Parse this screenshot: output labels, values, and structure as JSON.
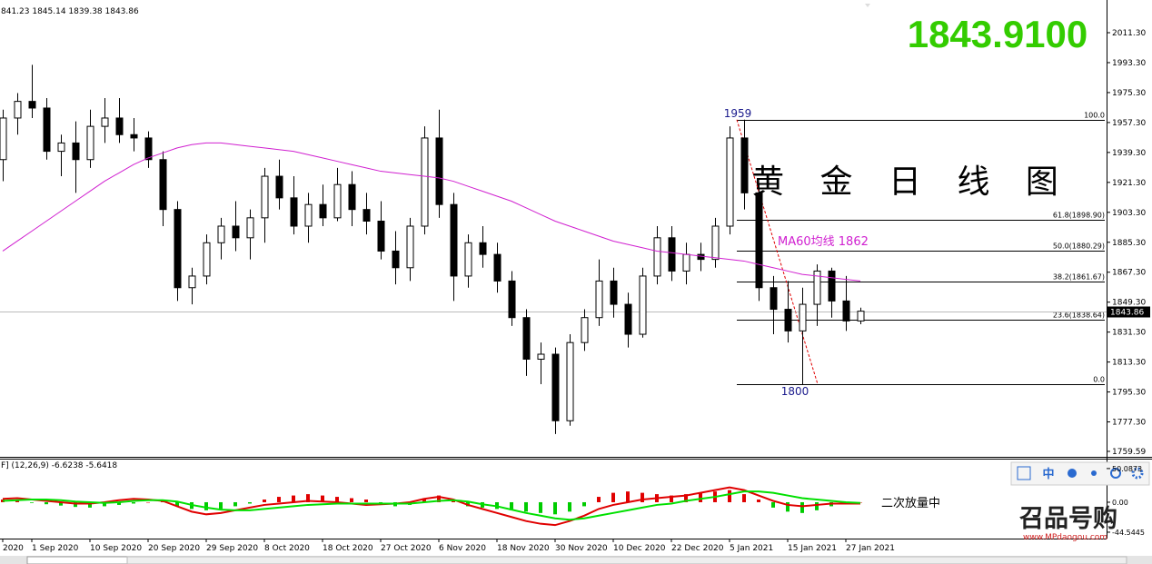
{
  "header": {
    "ohlc": "841.23 1845.14 1839.38 1843.86",
    "price": "1843.9100"
  },
  "toolbar": {
    "lang": "中"
  },
  "watermark": {
    "brand": "召品号购",
    "url": "www.MPdaogou.com"
  },
  "chart_data": [
    {
      "type": "candlestick",
      "title": "黄 金 日 线 图",
      "categories": [
        "2020",
        null,
        "1 Sep 2020",
        null,
        null,
        null,
        "10 Sep 2020",
        null,
        null,
        null,
        "20 Sep 2020",
        null,
        null,
        null,
        "29 Sep 2020",
        null,
        null,
        null,
        "8 Oct 2020",
        null,
        null,
        null,
        "18 Oct 2020",
        null,
        null,
        null,
        "27 Oct 2020",
        null,
        null,
        null,
        "6 Nov 2020",
        null,
        null,
        null,
        "18 Nov 2020",
        null,
        null,
        null,
        "30 Nov 2020",
        null,
        null,
        null,
        "10 Dec 2020",
        null,
        null,
        null,
        "22 Dec 2020",
        null,
        null,
        null,
        "5 Jan 2021",
        null,
        null,
        null,
        "15 Jan 2021",
        null,
        null,
        null,
        "27 Jan 2021",
        null
      ],
      "open": [
        1935,
        1960,
        1970,
        1966,
        1940,
        1945,
        1935,
        1955,
        1960,
        1950,
        1948,
        1935,
        1905,
        1858,
        1865,
        1885,
        1895,
        1888,
        1900,
        1925,
        1912,
        1895,
        1908,
        1900,
        1920,
        1905,
        1898,
        1880,
        1870,
        1895,
        1948,
        1908,
        1865,
        1885,
        1878,
        1862,
        1840,
        1815,
        1818,
        1778,
        1825,
        1840,
        1862,
        1848,
        1830,
        1865,
        1888,
        1868,
        1878,
        1875,
        1895,
        1948,
        1915,
        1858,
        1845,
        1832,
        1848,
        1868,
        1850,
        1838
      ],
      "high": [
        1965,
        1975,
        1992,
        1972,
        1950,
        1958,
        1965,
        1972,
        1972,
        1960,
        1952,
        1940,
        1910,
        1870,
        1890,
        1900,
        1910,
        1905,
        1930,
        1935,
        1925,
        1915,
        1920,
        1930,
        1928,
        1915,
        1910,
        1892,
        1900,
        1955,
        1965,
        1915,
        1890,
        1895,
        1885,
        1868,
        1845,
        1825,
        1822,
        1830,
        1845,
        1875,
        1870,
        1855,
        1870,
        1895,
        1895,
        1885,
        1885,
        1900,
        1955,
        1959,
        1920,
        1865,
        1862,
        1858,
        1872,
        1870,
        1865,
        1846
      ],
      "low": [
        1922,
        1950,
        1960,
        1935,
        1925,
        1915,
        1930,
        1945,
        1945,
        1940,
        1930,
        1895,
        1850,
        1848,
        1860,
        1875,
        1880,
        1875,
        1885,
        1905,
        1890,
        1885,
        1895,
        1898,
        1895,
        1890,
        1875,
        1860,
        1862,
        1890,
        1900,
        1850,
        1858,
        1870,
        1855,
        1835,
        1805,
        1800,
        1770,
        1775,
        1820,
        1835,
        1840,
        1822,
        1828,
        1860,
        1862,
        1860,
        1868,
        1870,
        1890,
        1905,
        1850,
        1830,
        1825,
        1800,
        1835,
        1840,
        1832,
        1836
      ],
      "close": [
        1960,
        1970,
        1966,
        1940,
        1945,
        1935,
        1955,
        1960,
        1950,
        1948,
        1935,
        1905,
        1858,
        1865,
        1885,
        1895,
        1888,
        1900,
        1925,
        1912,
        1895,
        1908,
        1900,
        1920,
        1905,
        1898,
        1880,
        1870,
        1895,
        1948,
        1908,
        1865,
        1885,
        1878,
        1862,
        1840,
        1815,
        1818,
        1778,
        1825,
        1840,
        1862,
        1848,
        1830,
        1865,
        1888,
        1868,
        1878,
        1875,
        1895,
        1948,
        1915,
        1858,
        1845,
        1832,
        1848,
        1868,
        1850,
        1838,
        1843.86
      ],
      "ma": {
        "color": "#d020d0",
        "values": [
          1880,
          1886,
          1892,
          1898,
          1904,
          1910,
          1916,
          1922,
          1927,
          1932,
          1936,
          1939,
          1942,
          1944,
          1945,
          1945,
          1944,
          1943,
          1942,
          1941,
          1940,
          1938,
          1936,
          1934,
          1932,
          1930,
          1928,
          1927,
          1926,
          1925,
          1924,
          1922,
          1919,
          1916,
          1913,
          1910,
          1906,
          1902,
          1898,
          1895,
          1892,
          1889,
          1886,
          1884,
          1882,
          1880,
          1879,
          1878,
          1877,
          1876,
          1875,
          1874,
          1872,
          1870,
          1868,
          1866,
          1865,
          1864,
          1863,
          1862
        ]
      },
      "ylim": [
        1756.3,
        2030.96
      ],
      "yticks": [
        {
          "value": 2011.3,
          "label": "2011.30"
        },
        {
          "value": 1993.3,
          "label": "1993.30"
        },
        {
          "value": 1975.3,
          "label": "1975.30"
        },
        {
          "value": 1957.3,
          "label": "1957.30"
        },
        {
          "value": 1939.3,
          "label": "1939.30"
        },
        {
          "value": 1921.3,
          "label": "1921.30"
        },
        {
          "value": 1903.3,
          "label": "1903.30"
        },
        {
          "value": 1885.3,
          "label": "1885.30"
        },
        {
          "value": 1867.3,
          "label": "1867.30"
        },
        {
          "value": 1849.3,
          "label": "1849.30"
        },
        {
          "value": 1831.3,
          "label": "1831.30"
        },
        {
          "value": 1813.3,
          "label": "1813.30"
        },
        {
          "value": 1795.3,
          "label": "1795.30"
        },
        {
          "value": 1777.3,
          "label": "1777.30"
        },
        1759.59
      ],
      "fib": [
        {
          "value": 1959,
          "label": "100.0"
        },
        {
          "value": 1898.9,
          "label": "61.8(1898.90)"
        },
        {
          "value": 1880.29,
          "label": "50.0(1880.29)"
        },
        {
          "value": 1861.67,
          "label": "38.2(1861.67)"
        },
        {
          "value": 1838.64,
          "label": "23.6(1838.64)"
        },
        {
          "value": 1800,
          "label": "0.0"
        }
      ],
      "annotations": {
        "high": "1959",
        "low": "1800",
        "ma": "MA60均线  1862"
      }
    },
    {
      "type": "macd",
      "label": "F] (12,26,9) -6.6238 -5.6418",
      "note": "二次放量中",
      "hist": [
        4,
        2,
        -1,
        -3,
        -5,
        -7,
        -8,
        -6,
        -4,
        -2,
        0,
        2,
        -6,
        -10,
        -12,
        -10,
        -6,
        -2,
        4,
        8,
        10,
        12,
        10,
        8,
        6,
        4,
        -2,
        -6,
        -4,
        6,
        10,
        2,
        -6,
        -8,
        -10,
        -12,
        -14,
        -16,
        -18,
        -14,
        -6,
        8,
        14,
        16,
        14,
        12,
        10,
        12,
        14,
        16,
        18,
        12,
        4,
        -8,
        -14,
        -16,
        -12,
        -6,
        -2,
        0
      ],
      "macd": {
        "color": "#e00000",
        "values": [
          5,
          6,
          4,
          2,
          0,
          -2,
          -2,
          0,
          3,
          5,
          4,
          2,
          -6,
          -14,
          -18,
          -16,
          -12,
          -8,
          -4,
          -2,
          0,
          2,
          1,
          0,
          -2,
          -4,
          -3,
          -2,
          0,
          5,
          8,
          4,
          -4,
          -10,
          -16,
          -22,
          -28,
          -32,
          -34,
          -28,
          -20,
          -10,
          -4,
          0,
          4,
          6,
          8,
          10,
          14,
          18,
          22,
          18,
          10,
          2,
          -4,
          -6,
          -4,
          -2,
          -2,
          -2
        ]
      },
      "signal": {
        "color": "#00e000",
        "values": [
          2,
          3,
          4,
          4,
          3,
          1,
          0,
          -1,
          0,
          2,
          3,
          3,
          1,
          -4,
          -8,
          -11,
          -12,
          -12,
          -10,
          -8,
          -6,
          -4,
          -3,
          -2,
          -2,
          -2,
          -2,
          -2,
          -2,
          0,
          2,
          3,
          1,
          -3,
          -6,
          -11,
          -16,
          -20,
          -24,
          -26,
          -24,
          -20,
          -16,
          -12,
          -8,
          -4,
          -2,
          2,
          5,
          8,
          12,
          16,
          16,
          14,
          10,
          6,
          4,
          2,
          0,
          -1
        ]
      },
      "ylim": [
        -52.7,
        64.8
      ],
      "yticks": [
        {
          "value": 50.0873,
          "label": "50.0873"
        },
        {
          "value": 0,
          "label": "0.00"
        },
        {
          "value": -44.5445,
          "label": "-44.5445"
        }
      ]
    }
  ]
}
